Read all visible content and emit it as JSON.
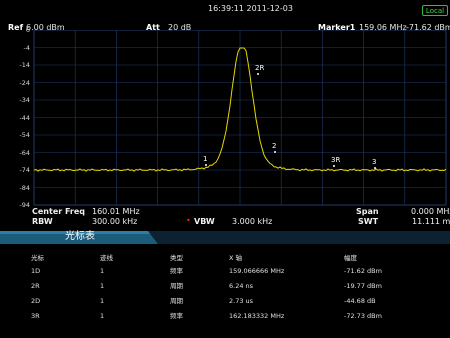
{
  "status": {
    "datetime": "16:39:11 2011-12-03",
    "local_label": "Local"
  },
  "header": {
    "ref_label": "Ref",
    "ref_value": "6.00 dBm",
    "att_label": "Att",
    "att_value": "20 dB",
    "marker_label": "Marker1",
    "marker_freq": "159.06 MHz",
    "marker_level": "-71.62 dBm"
  },
  "y_axis": {
    "ticks": [
      "6",
      "-4",
      "-14",
      "-24",
      "-34",
      "-44",
      "-54",
      "-64",
      "-74",
      "-84",
      "-94"
    ]
  },
  "markers": [
    {
      "label": "1"
    },
    {
      "label": "2R"
    },
    {
      "label": "2"
    },
    {
      "label": "3R"
    },
    {
      "label": "3"
    }
  ],
  "footer": {
    "center_freq_label": "Center Freq",
    "center_freq_value": "160.01 MHz",
    "rbw_label": "RBW",
    "rbw_value": "300.00 kHz",
    "vbw_label": "VBW",
    "vbw_value": "3.000 kHz",
    "span_label": "Span",
    "span_value": "0.000 MHz",
    "swt_label": "SWT",
    "swt_value": "11.111 ms"
  },
  "marker_table": {
    "title": "光标表",
    "columns": [
      "光标",
      "迹线",
      "类型",
      "X 轴",
      "幅度"
    ],
    "rows": [
      [
        "1D",
        "1",
        "频率",
        "159.066666 MHz",
        "-71.62 dBm"
      ],
      [
        "2R",
        "1",
        "周期",
        "6.24 ns",
        "-19.77 dBm"
      ],
      [
        "2D",
        "1",
        "周期",
        "2.73 us",
        "-44.68 dB"
      ],
      [
        "3R",
        "1",
        "频率",
        "162.183332 MHz",
        "-72.73 dBm"
      ]
    ]
  },
  "colors": {
    "trace": "#e8d800",
    "grid": "#1e3a6a",
    "accent_red": "#ff2020",
    "local": "#39b54a"
  }
}
